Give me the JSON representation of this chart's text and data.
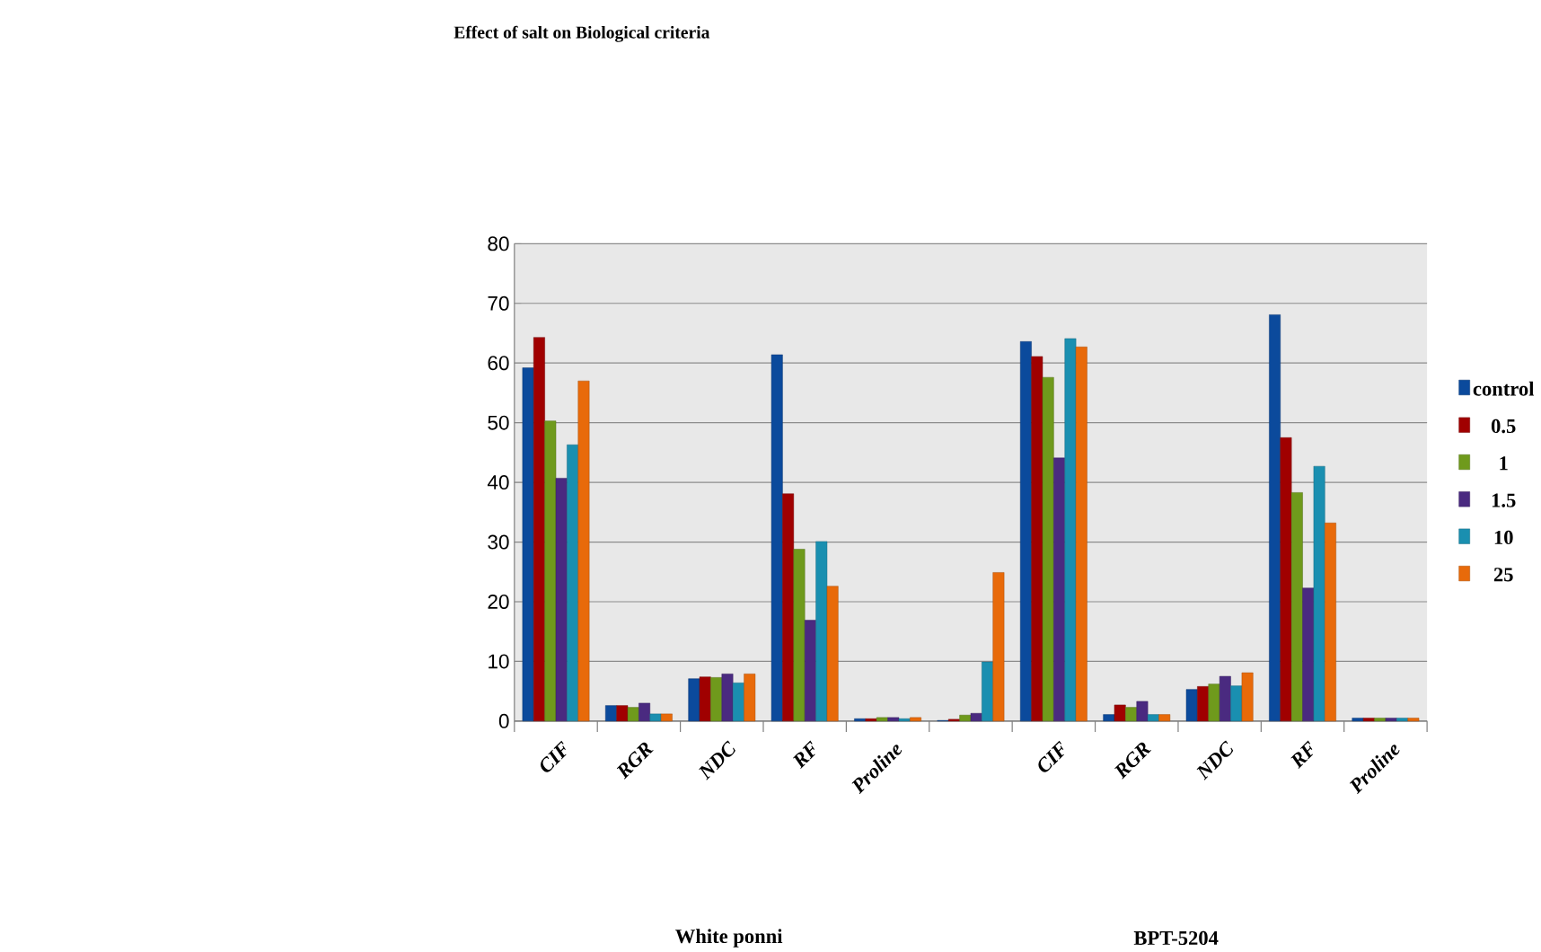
{
  "chart_data": {
    "type": "bar",
    "title": "Effect  of salt on Biological criteria",
    "categories": [
      "CIF",
      "RGR",
      "NDC",
      "RF",
      "Proline",
      null,
      "CIF",
      "RGR",
      "NDC",
      "RF",
      "Proline"
    ],
    "series": [
      {
        "name": "control",
        "color": "#0b4a9c",
        "values": [
          59.2,
          2.6,
          7.1,
          61.4,
          0.4,
          0.1,
          63.6,
          1.1,
          5.3,
          68.1,
          0.5
        ]
      },
      {
        "name": "0.5",
        "color": "#a00000",
        "values": [
          64.3,
          2.6,
          7.4,
          38.1,
          0.4,
          0.3,
          61.1,
          2.7,
          5.8,
          47.5,
          0.5
        ]
      },
      {
        "name": "1",
        "color": "#6f9a1c",
        "values": [
          50.3,
          2.3,
          7.3,
          28.8,
          0.6,
          1.0,
          57.6,
          2.3,
          6.2,
          38.3,
          0.5
        ]
      },
      {
        "name": "1.5",
        "color": "#4a2a80",
        "values": [
          40.7,
          3.0,
          7.9,
          16.9,
          0.6,
          1.3,
          44.1,
          3.3,
          7.5,
          22.3,
          0.5
        ]
      },
      {
        "name": "10",
        "color": "#1a8fb0",
        "values": [
          46.3,
          1.2,
          6.4,
          30.1,
          0.4,
          9.9,
          64.1,
          1.1,
          5.9,
          42.7,
          0.5
        ]
      },
      {
        "name": "25",
        "color": "#e86a0a",
        "values": [
          57.0,
          1.2,
          7.9,
          22.6,
          0.6,
          24.9,
          62.7,
          1.1,
          8.1,
          33.2,
          0.5
        ]
      }
    ],
    "ylim": [
      0,
      80
    ],
    "yticks": [
      0,
      10,
      20,
      30,
      40,
      50,
      60,
      70,
      80
    ],
    "grid": "y",
    "legend": "right",
    "annotations": [
      "White ponni",
      "BPT-5204"
    ]
  }
}
